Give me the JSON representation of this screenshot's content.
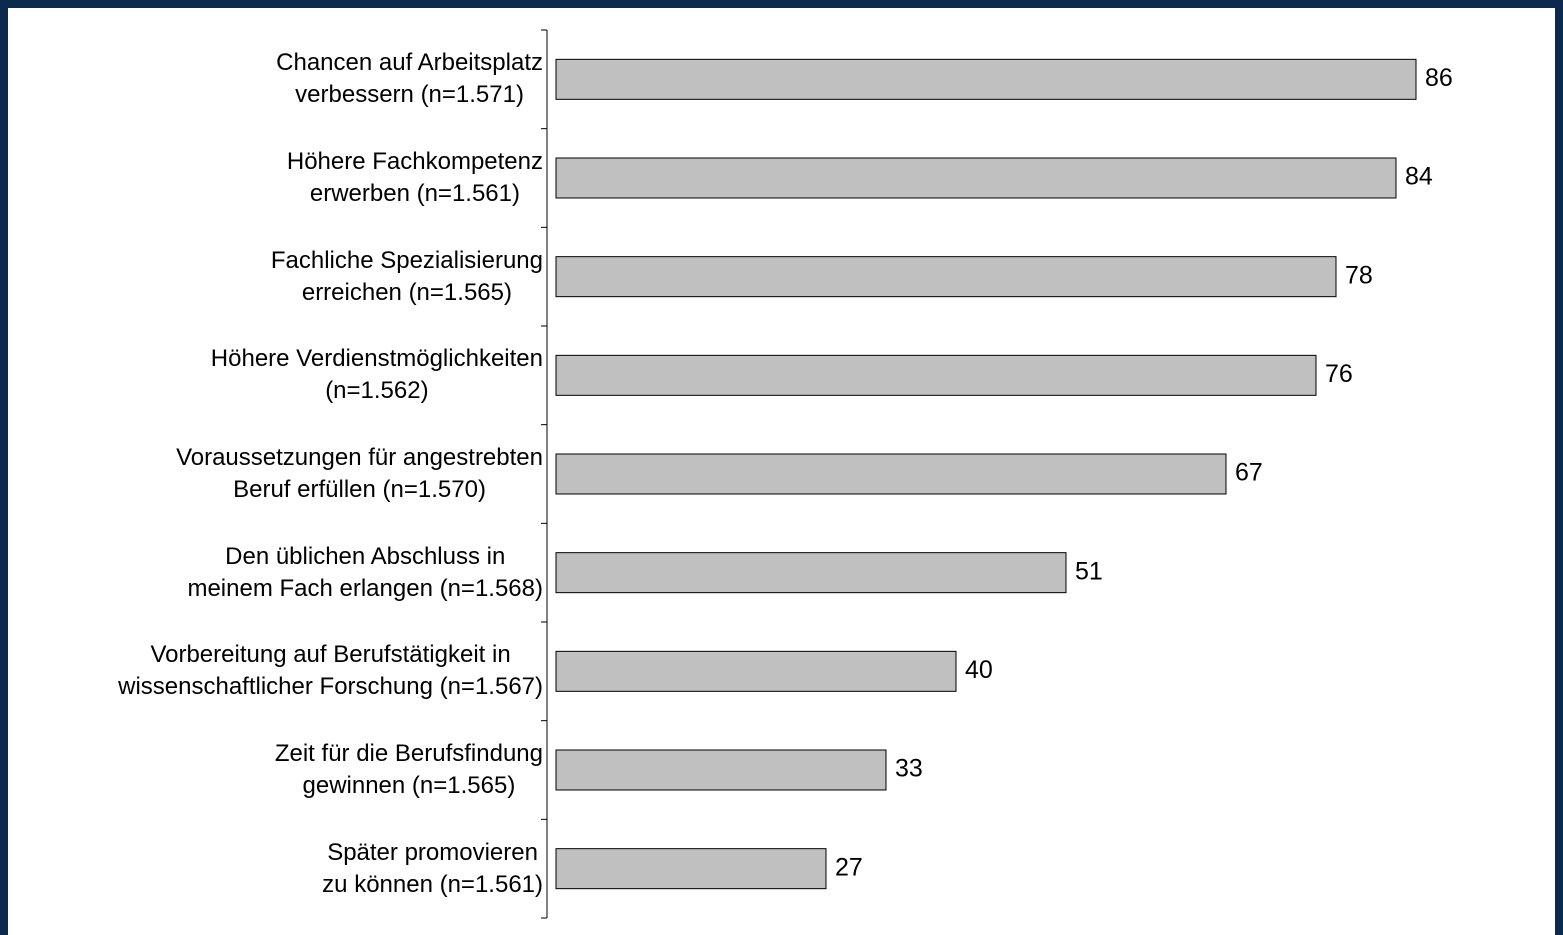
{
  "chart_data": {
    "type": "bar",
    "orientation": "horizontal",
    "categories": [
      "Chancen auf Arbeitsplatz\nverbessern (n=1.571)",
      "Höhere Fachkompetenz\nerwerben (n=1.561)",
      "Fachliche Spezialisierung\nerreichen (n=1.565)",
      "Höhere Verdienstmöglichkeiten\n(n=1.562)",
      "Voraussetzungen für angestrebten\nBeruf erfüllen (n=1.570)",
      "Den üblichen Abschluss in\nmeinem Fach erlangen (n=1.568)",
      "Vorbereitung auf Berufstätigkeit in\nwissenschaftlicher Forschung (n=1.567)",
      "Zeit für die Berufsfindung\ngewinnen (n=1.565)",
      "Später promovieren\nzu können (n=1.561)"
    ],
    "values": [
      86,
      84,
      78,
      76,
      67,
      51,
      40,
      33,
      27
    ],
    "color": "#c0c0c0",
    "xlim": [
      0,
      100
    ]
  }
}
